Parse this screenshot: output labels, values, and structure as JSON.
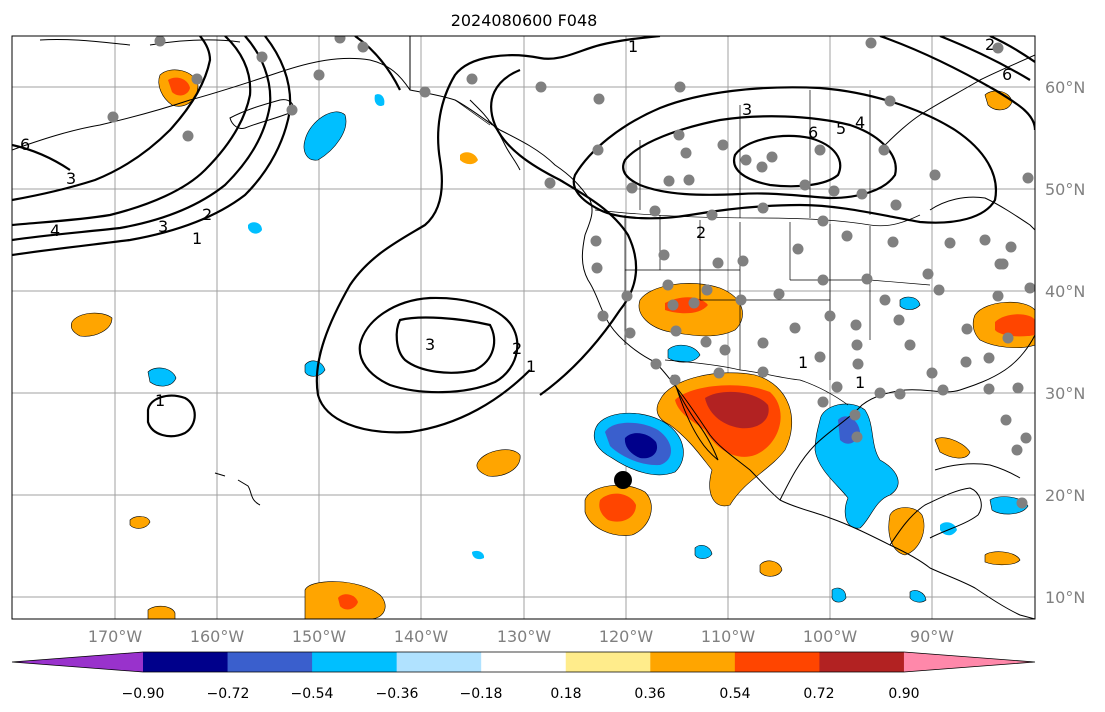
{
  "title": "2024080600 F048",
  "lat_labels": [
    "60°N",
    "50°N",
    "40°N",
    "30°N",
    "20°N",
    "10°N"
  ],
  "lon_labels": [
    "170°W",
    "160°W",
    "150°W",
    "140°W",
    "130°W",
    "120°W",
    "110°W",
    "100°W",
    "90°W"
  ],
  "colorbar": {
    "colors": [
      "#9932cc",
      "#00008b",
      "#3a5fcd",
      "#00bfff",
      "#b0e2ff",
      "#ffffff",
      "#ffec8b",
      "#ffa500",
      "#ff4500",
      "#b22222",
      "#ff88aa"
    ],
    "tick_labels": [
      "−0.90",
      "−0.72",
      "−0.54",
      "−0.36",
      "−0.18",
      "0.18",
      "0.36",
      "0.54",
      "0.72",
      "0.90"
    ]
  },
  "contour_labels": [
    "1",
    "2",
    "3",
    "4",
    "5",
    "6"
  ],
  "marker_colors": {
    "station": "#808080",
    "target": "#000000"
  }
}
